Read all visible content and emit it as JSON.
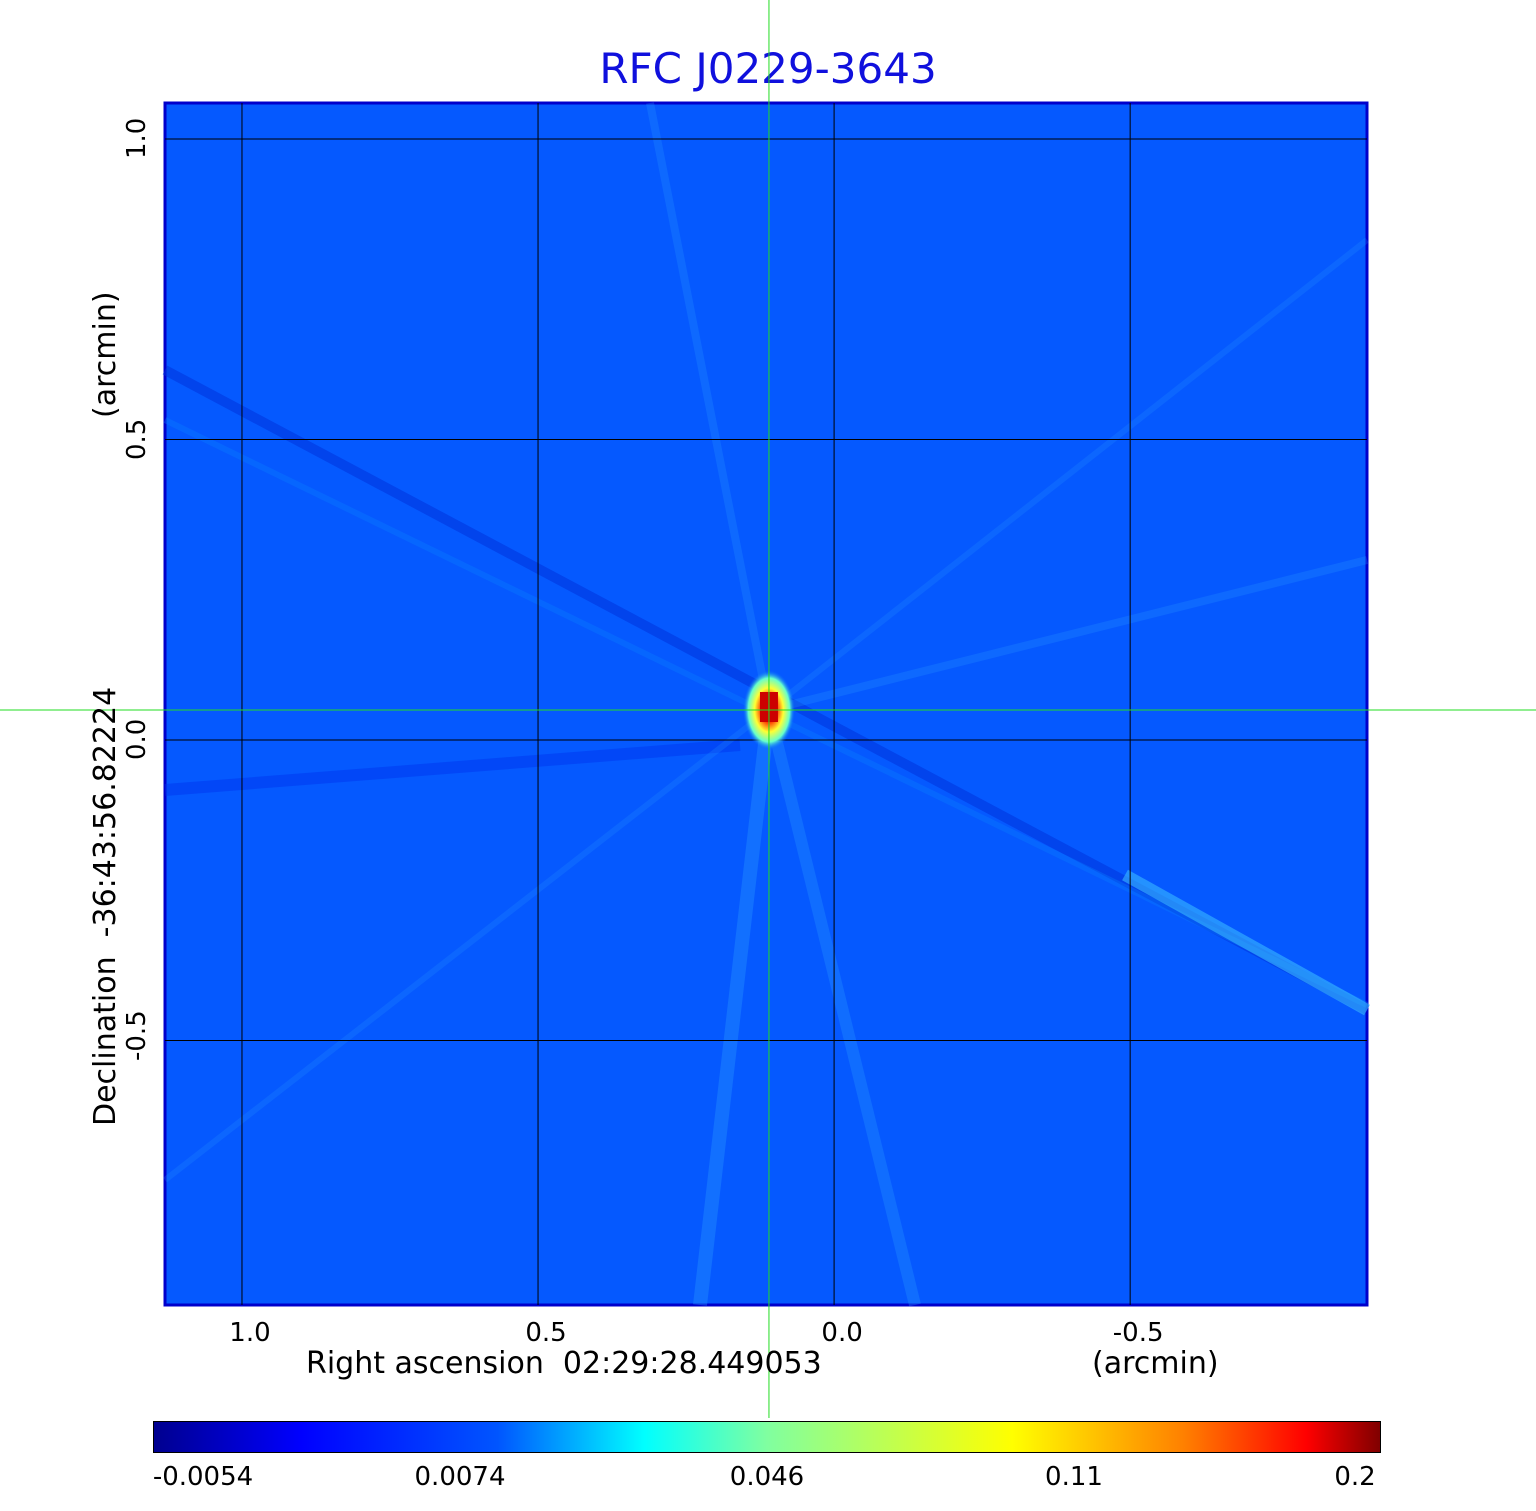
{
  "chart_data": {
    "type": "heatmap",
    "title": "RFC J0229-3643",
    "xlabel": "Right ascension  02:29:28.449053",
    "x_unit": "(arcmin)",
    "ylabel": "Declination  -36:43:56.82224",
    "y_unit": "(arcmin)",
    "x_ticks": [
      "1.0",
      "0.5",
      "0.0",
      "-0.5"
    ],
    "y_ticks": [
      "1.0",
      "0.5",
      "0.0",
      "-0.5"
    ],
    "xlim": [
      1.13,
      -0.9
    ],
    "ylim": [
      -0.94,
      1.06
    ],
    "grid": true,
    "crosshair": {
      "x": 0.11,
      "y": 0.05
    },
    "source_peak": {
      "x": 0.11,
      "y": 0.05,
      "value": 0.2
    },
    "colorbar": {
      "labels": [
        "-0.0054",
        "0.0074",
        "0.046",
        "0.11",
        "0.2"
      ],
      "colormap": "jet"
    }
  }
}
